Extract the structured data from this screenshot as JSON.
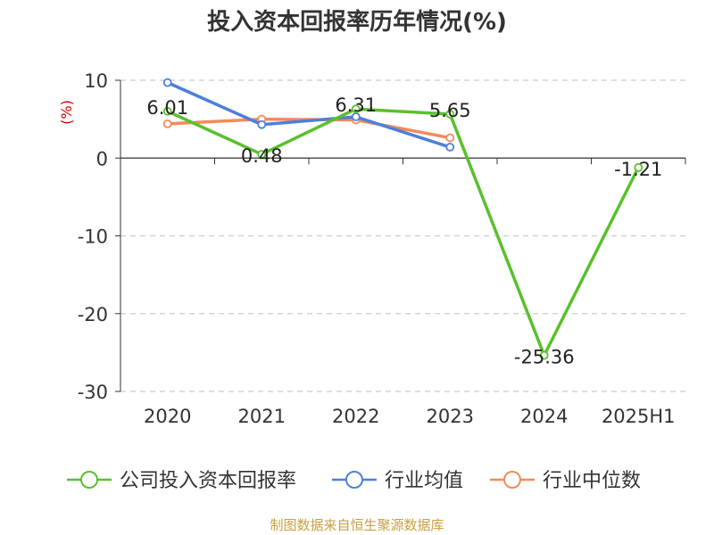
{
  "title": "投入资本回报率历年情况(%)",
  "source": "制图数据来自恒生聚源数据库",
  "colors": {
    "title": "#333333",
    "company": "#5ac02d",
    "industry_avg": "#4e7fdb",
    "industry_median": "#f28b5a",
    "unit": "#cc0000",
    "source": "#c8a040",
    "grid": "#cccccc",
    "axis": "#333333",
    "text": "#333333"
  },
  "chart_data": {
    "type": "line",
    "title": "投入资本回报率历年情况(%)",
    "ylabel": "(%)",
    "xlabel": "",
    "categories": [
      "2020",
      "2021",
      "2022",
      "2023",
      "2024",
      "2025H1"
    ],
    "ylim": [
      -30,
      10
    ],
    "yticks": [
      10,
      0,
      -10,
      -20,
      -30
    ],
    "grid": true,
    "legend_position": "bottom",
    "series": [
      {
        "name": "公司投入资本回报率",
        "key": "company",
        "values": [
          6.01,
          0.48,
          6.31,
          5.65,
          -25.36,
          -1.21
        ],
        "labels": [
          "6.01",
          "0.48",
          "6.31",
          "5.65",
          "-25.36",
          "-1.21"
        ]
      },
      {
        "name": "行业均值",
        "key": "industry_avg",
        "values": [
          9.7,
          4.3,
          5.3,
          1.4,
          null,
          null
        ]
      },
      {
        "name": "行业中位数",
        "key": "industry_median",
        "values": [
          4.4,
          5.0,
          4.9,
          2.6,
          null,
          null
        ]
      }
    ]
  }
}
